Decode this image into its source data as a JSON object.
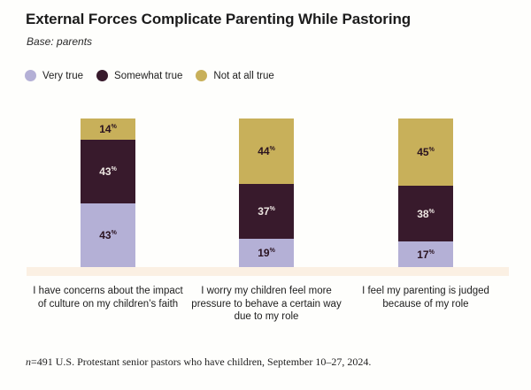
{
  "title": "External Forces Complicate Parenting While Pastoring",
  "subtitle": "Base: parents",
  "legend": [
    {
      "label": "Very true",
      "color": "#B4B0D6"
    },
    {
      "label": "Somewhat true",
      "color": "#381A2C"
    },
    {
      "label": "Not at all true",
      "color": "#C8B05A"
    }
  ],
  "chart_data": {
    "type": "bar",
    "stacked": true,
    "title": "External Forces Complicate Parenting While Pastoring",
    "subtitle": "Base: parents",
    "categories": [
      "I have concerns about the impact of culture on my children’s faith",
      "I worry my children feel more pressure to behave a certain way due to my role",
      "I feel my parenting is judged because of my role"
    ],
    "series": [
      {
        "name": "Very true",
        "color": "#B4B0D6",
        "label_color": "#2A1320",
        "values": [
          43,
          19,
          17
        ]
      },
      {
        "name": "Somewhat true",
        "color": "#381A2C",
        "label_color": "#EDE6E2",
        "values": [
          43,
          37,
          38
        ]
      },
      {
        "name": "Not at all true",
        "color": "#C8B05A",
        "label_color": "#2A1320",
        "values": [
          14,
          44,
          45
        ]
      }
    ],
    "value_suffix": "%",
    "ylim": [
      0,
      100
    ],
    "legend_position": "top",
    "grid": false,
    "baseline_band_color": "#FBF0E3"
  },
  "footnote": {
    "n_prefix": "n",
    "text": "=491 U.S. Protestant senior pastors who have children, September 10–27, 2024."
  }
}
